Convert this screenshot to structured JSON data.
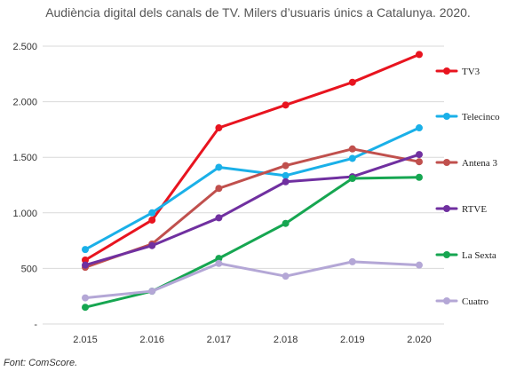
{
  "title": "Audiència digital dels canals de TV. Milers d’usuaris únics a Catalunya. 2020.",
  "source": "Font: ComScore.",
  "chart_data": {
    "type": "line",
    "title": "Audiència digital dels canals de TV. Milers d’usuaris únics a Catalunya. 2020.",
    "xlabel": "",
    "ylabel": "",
    "x": [
      "2.015",
      "2.016",
      "2.017",
      "2.018",
      "2.019",
      "2.020"
    ],
    "ylim": [
      0,
      2500
    ],
    "yticks": [
      0,
      500,
      1000,
      1500,
      2000,
      2500
    ],
    "ytick_labels": [
      "-",
      "500",
      "1.000",
      "1.500",
      "2.000",
      "2.500"
    ],
    "grid": true,
    "legend_position": "right",
    "series": [
      {
        "name": "TV3",
        "color": "#e8141f",
        "values": [
          575,
          935,
          1765,
          1970,
          2175,
          2425
        ]
      },
      {
        "name": "Telecinco",
        "color": "#1ab0e8",
        "values": [
          670,
          1000,
          1410,
          1335,
          1490,
          1765
        ]
      },
      {
        "name": "Antena 3",
        "color": "#c0504d",
        "values": [
          510,
          720,
          1220,
          1425,
          1575,
          1460
        ]
      },
      {
        "name": "RTVE",
        "color": "#7030a0",
        "values": [
          530,
          705,
          955,
          1280,
          1325,
          1525
        ]
      },
      {
        "name": "La Sexta",
        "color": "#16a651",
        "values": [
          150,
          295,
          590,
          905,
          1310,
          1320
        ]
      },
      {
        "name": "Cuatro",
        "color": "#b4a7d6",
        "values": [
          235,
          295,
          545,
          430,
          560,
          530
        ]
      }
    ]
  }
}
